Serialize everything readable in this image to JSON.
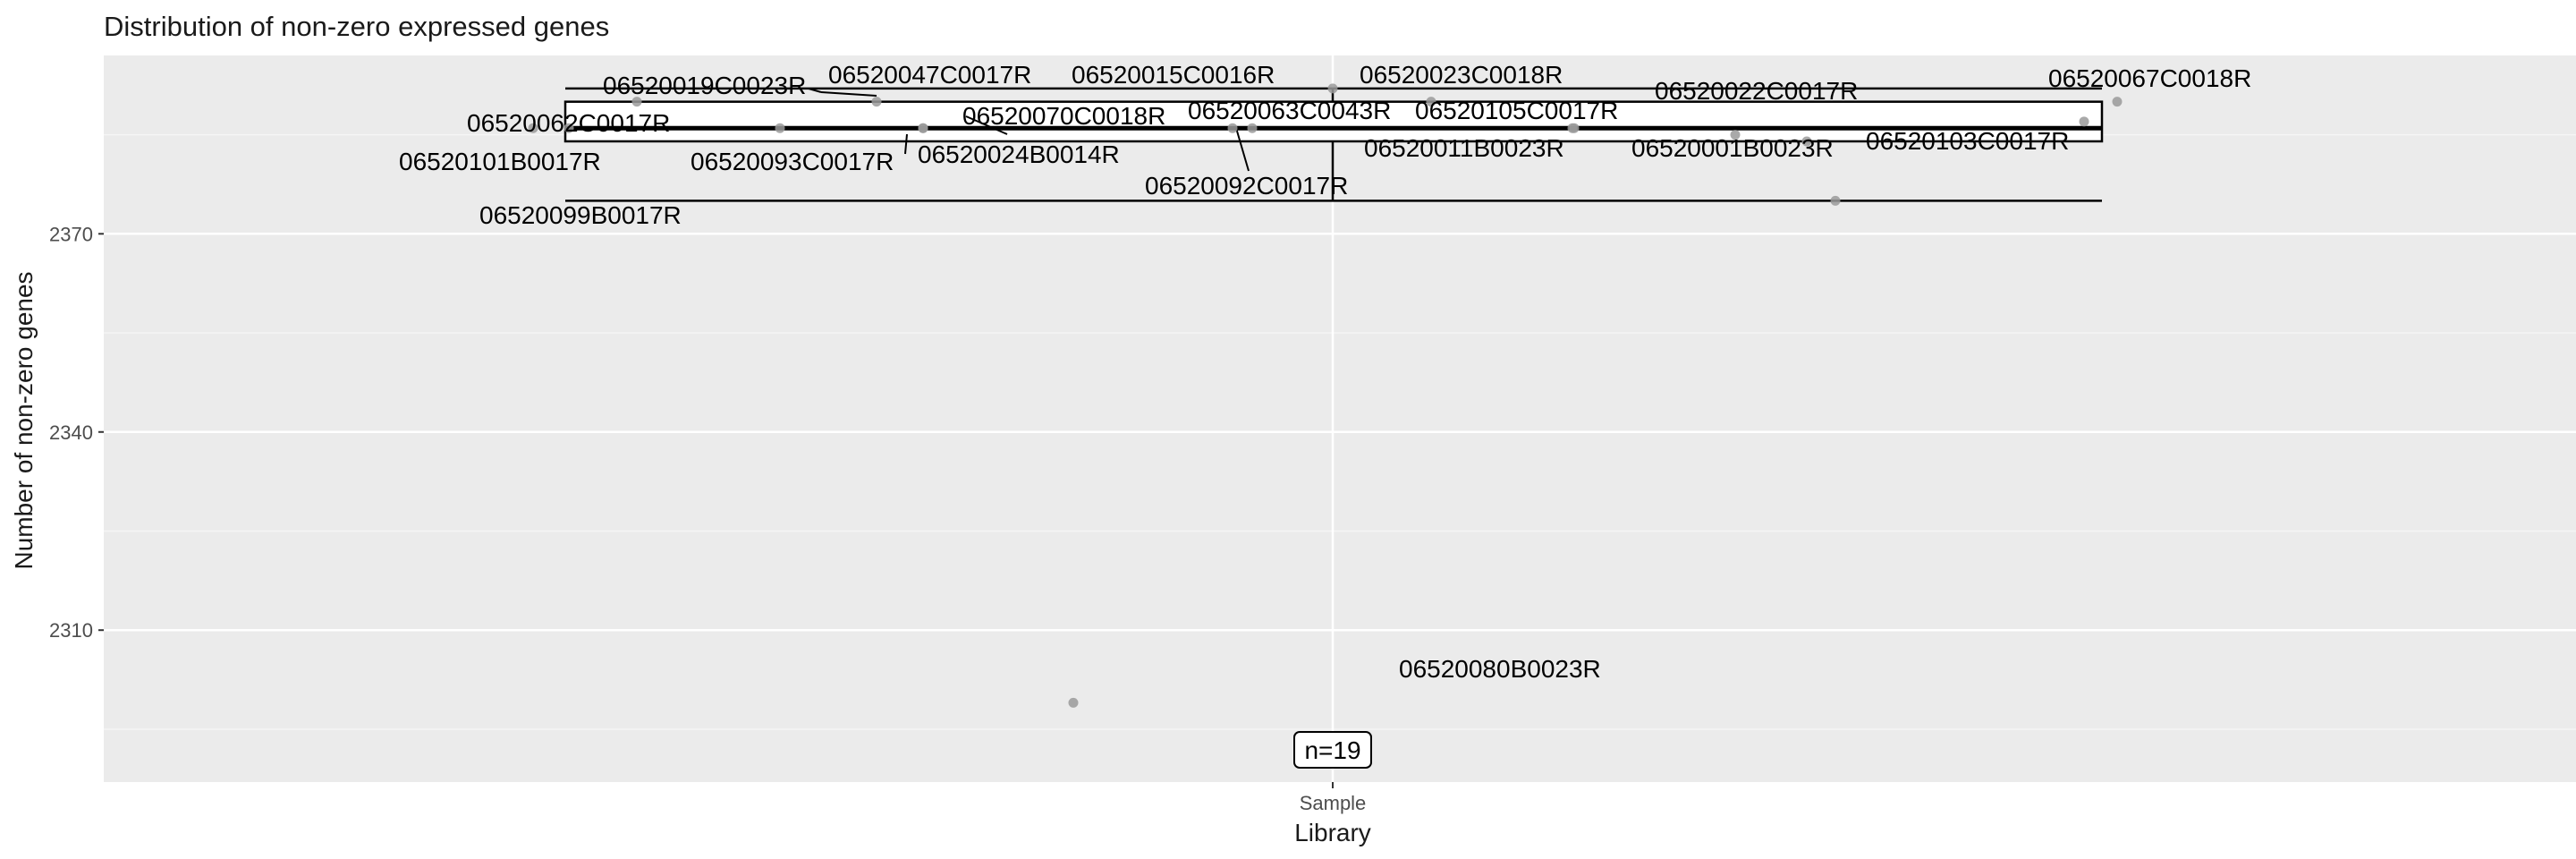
{
  "chart_data": {
    "type": "scatter",
    "subtype": "boxplot-with-jittered-labeled-points",
    "title": "Distribution of non-zero expressed genes",
    "xlabel": "Library",
    "ylabel": "Number of non-zero genes",
    "categories": [
      "Sample"
    ],
    "ylim": [
      2287,
      2397
    ],
    "yticks": [
      2310,
      2340,
      2370
    ],
    "grid": true,
    "box": {
      "min": 2375,
      "q1": 2384,
      "median": 2386,
      "q3": 2390,
      "max": 2392
    },
    "n_label": "n=19",
    "points": [
      {
        "label": "06520019C0023R",
        "value": 2390
      },
      {
        "label": "06520047C0017R",
        "value": 2390
      },
      {
        "label": "06520015C0016R",
        "value": 2392
      },
      {
        "label": "06520023C0018R",
        "value": 2390
      },
      {
        "label": "06520067C0018R",
        "value": 2390
      },
      {
        "label": "06520022C0017R",
        "value": 2387
      },
      {
        "label": "06520062C0017R",
        "value": 2386
      },
      {
        "label": "06520070C0018R",
        "value": 2386
      },
      {
        "label": "06520063C0043R",
        "value": 2386
      },
      {
        "label": "06520105C0017R",
        "value": 2386
      },
      {
        "label": "06520101B0017R",
        "value": 2386
      },
      {
        "label": "06520093C0017R",
        "value": 2386
      },
      {
        "label": "06520024B0014R",
        "value": 2386
      },
      {
        "label": "06520011B0023R",
        "value": 2386
      },
      {
        "label": "06520001B0023R",
        "value": 2385
      },
      {
        "label": "06520103C0017R",
        "value": 2384
      },
      {
        "label": "06520092C0017R",
        "value": 2386
      },
      {
        "label": "06520099B0017R",
        "value": 2375
      },
      {
        "label": "06520080B0023R",
        "value": 2299
      }
    ]
  }
}
